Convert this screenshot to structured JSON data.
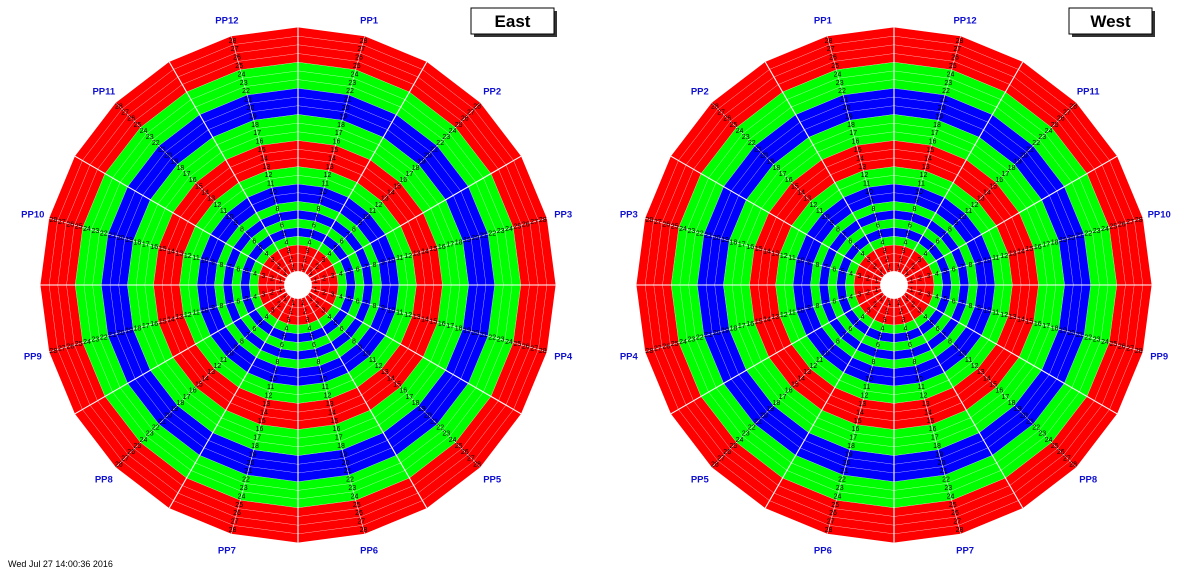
{
  "colors": {
    "red": "#ff0000",
    "green": "#00ff00",
    "blue": "#0000ff",
    "label": "#1010d0",
    "center": "#ffffff"
  },
  "ring_colors": [
    "red",
    "red",
    "red",
    "green",
    "blue",
    "green",
    "blue",
    "green",
    "blue",
    "blue",
    "green",
    "green",
    "red",
    "red",
    "red",
    "green",
    "green",
    "green",
    "blue",
    "blue",
    "blue",
    "green",
    "green",
    "green",
    "red",
    "red",
    "red",
    "red"
  ],
  "wheels": [
    {
      "title": "East",
      "pp_labels": [
        {
          "text": "PP1",
          "angle": 15
        },
        {
          "text": "PP2",
          "angle": 45
        },
        {
          "text": "PP3",
          "angle": 75
        },
        {
          "text": "PP4",
          "angle": 105
        },
        {
          "text": "PP5",
          "angle": 135
        },
        {
          "text": "PP6",
          "angle": 165
        },
        {
          "text": "PP7",
          "angle": 195
        },
        {
          "text": "PP8",
          "angle": 225
        },
        {
          "text": "PP9",
          "angle": 255
        },
        {
          "text": "PP10",
          "angle": 285
        },
        {
          "text": "PP11",
          "angle": 315
        },
        {
          "text": "PP12",
          "angle": 345
        }
      ]
    },
    {
      "title": "West",
      "pp_labels": [
        {
          "text": "PP12",
          "angle": 15
        },
        {
          "text": "PP11",
          "angle": 45
        },
        {
          "text": "PP10",
          "angle": 75
        },
        {
          "text": "PP9",
          "angle": 105
        },
        {
          "text": "PP8",
          "angle": 135
        },
        {
          "text": "PP7",
          "angle": 165
        },
        {
          "text": "PP6",
          "angle": 195
        },
        {
          "text": "PP5",
          "angle": 225
        },
        {
          "text": "PP4",
          "angle": 255
        },
        {
          "text": "PP3",
          "angle": 285
        },
        {
          "text": "PP2",
          "angle": 315
        },
        {
          "text": "PP1",
          "angle": 345
        }
      ]
    }
  ],
  "footer": "Wed Jul 27 14:00:36 2016"
}
